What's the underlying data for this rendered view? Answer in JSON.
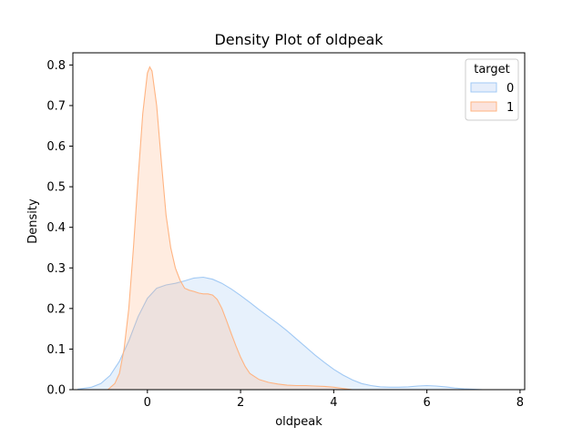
{
  "chart_data": {
    "type": "area",
    "title": "Density Plot of oldpeak",
    "xlabel": "oldpeak",
    "ylabel": "Density",
    "xlim": [
      -1.6,
      8.1
    ],
    "ylim": [
      0,
      0.83
    ],
    "xticks": [
      0,
      2,
      4,
      6,
      8
    ],
    "yticks": [
      0.0,
      0.1,
      0.2,
      0.3,
      0.4,
      0.5,
      0.6,
      0.7,
      0.8
    ],
    "grid": false,
    "legend": {
      "title": "target",
      "position": "top-right"
    },
    "series": [
      {
        "name": "0",
        "color": "#a1c9f4",
        "fill_color": "#e6eefb",
        "x": [
          -1.5,
          -1.2,
          -1.0,
          -0.8,
          -0.6,
          -0.4,
          -0.2,
          0.0,
          0.2,
          0.4,
          0.6,
          0.8,
          1.0,
          1.2,
          1.4,
          1.6,
          1.8,
          2.0,
          2.2,
          2.4,
          2.6,
          2.8,
          3.0,
          3.2,
          3.4,
          3.6,
          3.8,
          4.0,
          4.2,
          4.4,
          4.6,
          4.8,
          5.0,
          5.2,
          5.4,
          5.6,
          5.8,
          6.0,
          6.2,
          6.4,
          6.6,
          6.8,
          7.0,
          7.2
        ],
        "y": [
          0.001,
          0.006,
          0.015,
          0.035,
          0.07,
          0.12,
          0.18,
          0.225,
          0.25,
          0.258,
          0.262,
          0.268,
          0.275,
          0.277,
          0.272,
          0.262,
          0.248,
          0.232,
          0.215,
          0.197,
          0.18,
          0.163,
          0.145,
          0.125,
          0.105,
          0.085,
          0.067,
          0.05,
          0.036,
          0.024,
          0.015,
          0.01,
          0.007,
          0.006,
          0.006,
          0.007,
          0.009,
          0.01,
          0.009,
          0.007,
          0.004,
          0.002,
          0.001,
          0.0
        ]
      },
      {
        "name": "1",
        "color": "#ffb482",
        "fill_color": "#fbe3dd",
        "x": [
          -0.85,
          -0.7,
          -0.6,
          -0.5,
          -0.4,
          -0.3,
          -0.2,
          -0.1,
          0.0,
          0.05,
          0.1,
          0.2,
          0.3,
          0.4,
          0.5,
          0.6,
          0.7,
          0.8,
          0.9,
          1.0,
          1.1,
          1.2,
          1.3,
          1.4,
          1.5,
          1.6,
          1.7,
          1.8,
          1.9,
          2.0,
          2.1,
          2.2,
          2.4,
          2.6,
          2.8,
          3.0,
          3.2,
          3.4,
          3.6,
          3.8,
          4.0,
          4.2,
          4.4
        ],
        "y": [
          0.0,
          0.015,
          0.04,
          0.1,
          0.2,
          0.35,
          0.52,
          0.68,
          0.78,
          0.795,
          0.785,
          0.7,
          0.56,
          0.43,
          0.35,
          0.3,
          0.27,
          0.25,
          0.245,
          0.242,
          0.238,
          0.236,
          0.236,
          0.233,
          0.222,
          0.2,
          0.17,
          0.138,
          0.108,
          0.08,
          0.057,
          0.04,
          0.025,
          0.018,
          0.014,
          0.011,
          0.01,
          0.01,
          0.009,
          0.008,
          0.006,
          0.003,
          0.0
        ]
      }
    ]
  }
}
